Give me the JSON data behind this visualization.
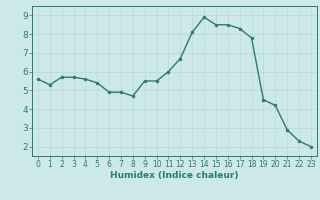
{
  "x": [
    0,
    1,
    2,
    3,
    4,
    5,
    6,
    7,
    8,
    9,
    10,
    11,
    12,
    13,
    14,
    15,
    16,
    17,
    18,
    19,
    20,
    21,
    22,
    23
  ],
  "y": [
    5.6,
    5.3,
    5.7,
    5.7,
    5.6,
    5.4,
    4.9,
    4.9,
    4.7,
    5.5,
    5.5,
    6.0,
    6.7,
    8.1,
    8.9,
    8.5,
    8.5,
    8.3,
    7.8,
    4.5,
    4.2,
    2.9,
    2.3,
    2.0
  ],
  "xlabel": "Humidex (Indice chaleur)",
  "xlim": [
    -0.5,
    23.5
  ],
  "ylim": [
    1.5,
    9.5
  ],
  "yticks": [
    2,
    3,
    4,
    5,
    6,
    7,
    8,
    9
  ],
  "xticks": [
    0,
    1,
    2,
    3,
    4,
    5,
    6,
    7,
    8,
    9,
    10,
    11,
    12,
    13,
    14,
    15,
    16,
    17,
    18,
    19,
    20,
    21,
    22,
    23
  ],
  "line_color": "#2d7a6e",
  "marker_color": "#2d7a6e",
  "bg_color": "#cce8e8",
  "grid_color": "#b8d8d8",
  "label_color": "#2d7a6e",
  "tick_color": "#2d7a6e",
  "spine_color": "#2d7a6e"
}
